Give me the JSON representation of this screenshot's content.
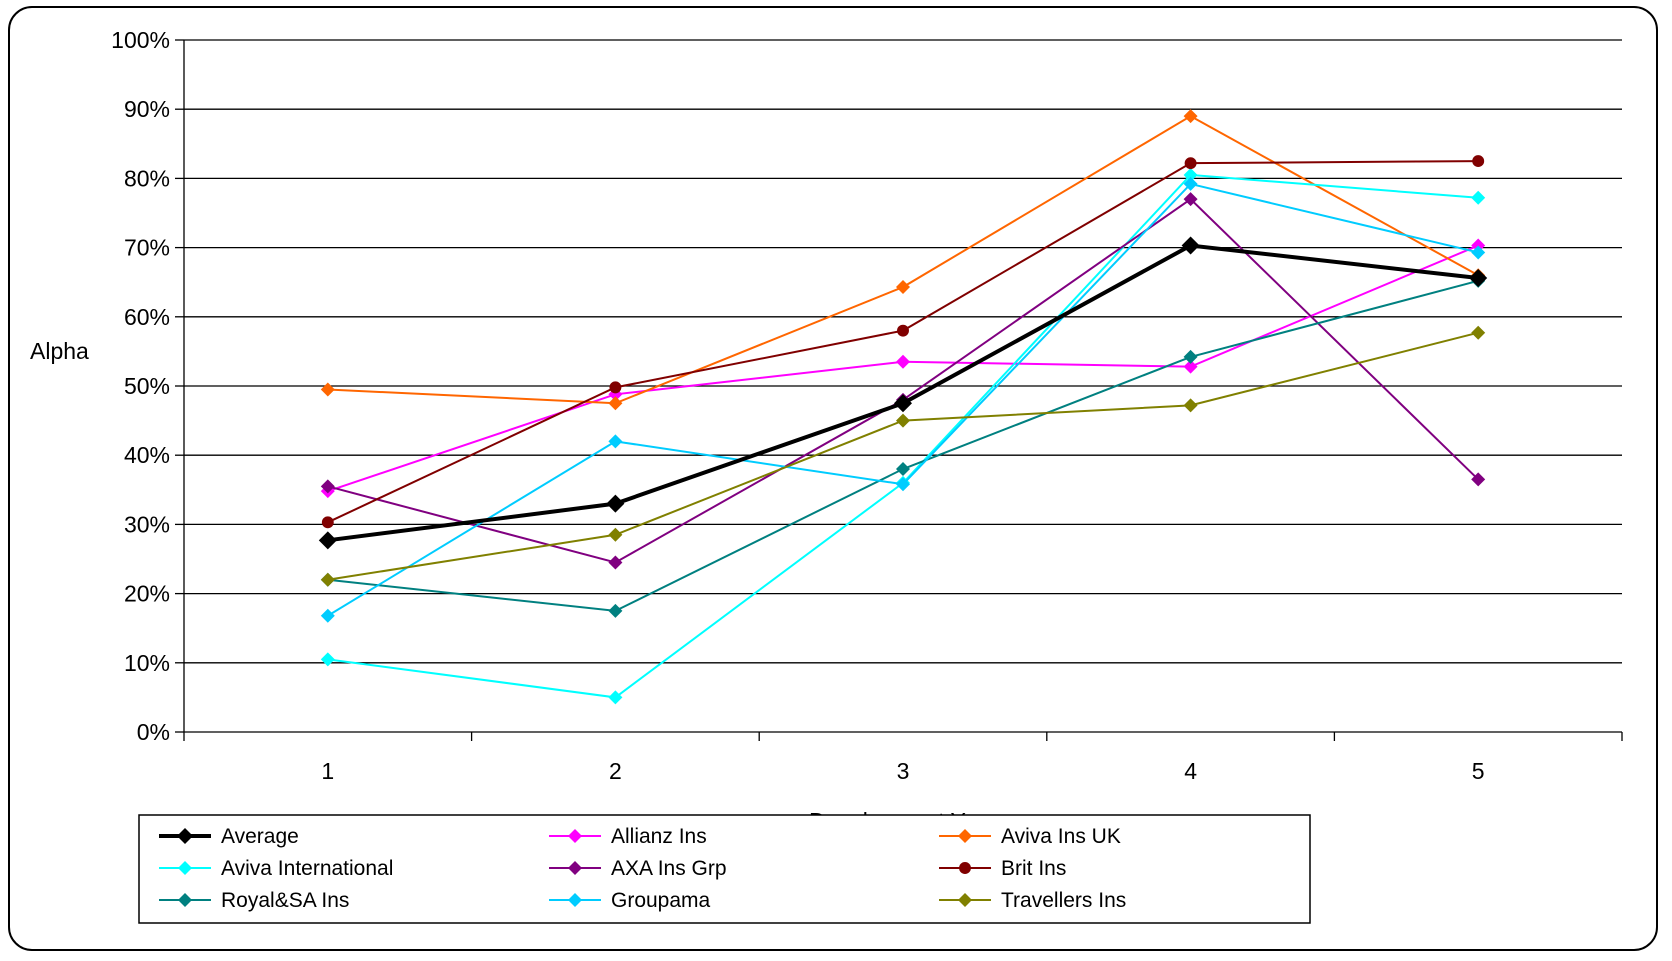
{
  "chart_data": {
    "type": "line",
    "title": "",
    "xlabel": "Development Year",
    "ylabel": "Alpha",
    "categories": [
      "1",
      "2",
      "3",
      "4",
      "5"
    ],
    "ylim": [
      0,
      1
    ],
    "yticks": [
      "0%",
      "10%",
      "20%",
      "30%",
      "40%",
      "50%",
      "60%",
      "70%",
      "80%",
      "90%",
      "100%"
    ],
    "grid": true,
    "legend_position": "bottom",
    "series": [
      {
        "name": "Average",
        "color": "#000000",
        "marker": "diamond",
        "bold": true,
        "values": [
          0.277,
          0.33,
          0.475,
          0.703,
          0.656
        ]
      },
      {
        "name": "Allianz Ins",
        "color": "#FF00FF",
        "marker": "diamond",
        "values": [
          0.348,
          0.488,
          0.535,
          0.528,
          0.703
        ]
      },
      {
        "name": "Aviva Ins UK",
        "color": "#FF6600",
        "marker": "diamond",
        "values": [
          0.495,
          0.475,
          0.643,
          0.89,
          0.66
        ]
      },
      {
        "name": "Aviva International",
        "color": "#00FFFF",
        "marker": "diamond",
        "values": [
          0.105,
          0.05,
          0.36,
          0.805,
          0.772
        ]
      },
      {
        "name": "AXA Ins Grp",
        "color": "#800080",
        "marker": "diamond",
        "values": [
          0.355,
          0.245,
          0.48,
          0.77,
          0.365
        ]
      },
      {
        "name": "Brit Ins",
        "color": "#800000",
        "marker": "circle",
        "values": [
          0.303,
          0.498,
          0.58,
          0.822,
          0.825
        ]
      },
      {
        "name": "Royal&SA Ins",
        "color": "#008080",
        "marker": "diamond",
        "values": [
          0.22,
          0.175,
          0.38,
          0.542,
          0.652
        ]
      },
      {
        "name": "Groupama",
        "color": "#00CCFF",
        "marker": "diamond",
        "values": [
          0.168,
          0.42,
          0.358,
          0.792,
          0.693
        ]
      },
      {
        "name": "Travellers Ins",
        "color": "#808000",
        "marker": "diamond",
        "values": [
          0.22,
          0.285,
          0.45,
          0.472,
          0.577
        ]
      }
    ]
  }
}
